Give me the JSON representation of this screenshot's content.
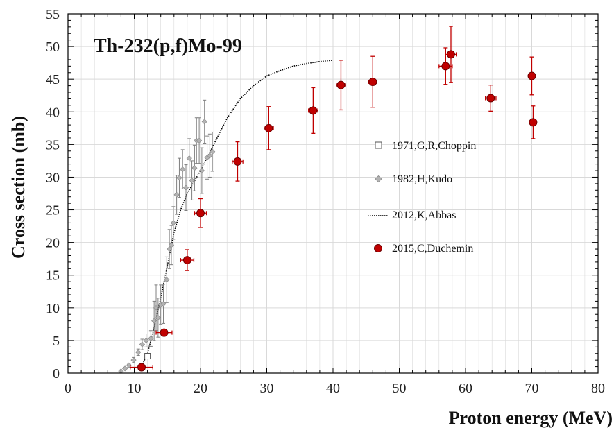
{
  "chart_data": {
    "type": "scatter",
    "title": "Th-232(p,f)Mo-99",
    "xlabel": "Proton energy (MeV)",
    "ylabel": "Cross section (mb)",
    "xlim": [
      0,
      80
    ],
    "ylim": [
      0,
      55
    ],
    "x_ticks": [
      0,
      10,
      20,
      30,
      40,
      50,
      60,
      70,
      80
    ],
    "y_ticks": [
      0,
      5,
      10,
      15,
      20,
      25,
      30,
      35,
      40,
      45,
      50,
      55
    ],
    "grid": true,
    "legend_position": "right",
    "colors": {
      "duchemin": "#c00000",
      "duchemin_edge": "#6b0000",
      "kudo": "#a6a6a6",
      "kudo_err": "#7f7f7f",
      "grid": "#d9d9d9"
    },
    "series": [
      {
        "name": "1971,G,R,Choppin",
        "marker": "open-square",
        "points": [
          {
            "x": 12.0,
            "y": 2.6
          }
        ]
      },
      {
        "name": "1982,H,Kudo",
        "marker": "diamond",
        "points": [
          {
            "x": 8.0,
            "y": 0.3,
            "yerr": 0.1
          },
          {
            "x": 8.6,
            "y": 0.7,
            "yerr": 0.2
          },
          {
            "x": 9.2,
            "y": 1.2,
            "yerr": 0.3
          },
          {
            "x": 9.9,
            "y": 2.0,
            "yerr": 0.4
          },
          {
            "x": 10.6,
            "y": 3.2,
            "yerr": 0.5
          },
          {
            "x": 11.2,
            "y": 4.4,
            "yerr": 0.8
          },
          {
            "x": 11.8,
            "y": 5.0,
            "yerr": 1.0
          },
          {
            "x": 12.5,
            "y": 5.3,
            "yerr": 1.2
          },
          {
            "x": 13.0,
            "y": 8.0,
            "yerr": 3.0
          },
          {
            "x": 13.3,
            "y": 10.0,
            "yerr": 3.5
          },
          {
            "x": 13.6,
            "y": 8.5,
            "yerr": 3.0
          },
          {
            "x": 14.0,
            "y": 10.5,
            "yerr": 3.0
          },
          {
            "x": 14.4,
            "y": 10.6,
            "yerr": 3.0
          },
          {
            "x": 14.9,
            "y": 14.3,
            "yerr": 3.5
          },
          {
            "x": 15.3,
            "y": 19.0,
            "yerr": 3.0
          },
          {
            "x": 15.6,
            "y": 19.6,
            "yerr": 3.0
          },
          {
            "x": 15.9,
            "y": 23.0,
            "yerr": 2.5
          },
          {
            "x": 16.4,
            "y": 27.3,
            "yerr": 3.0
          },
          {
            "x": 16.8,
            "y": 29.9,
            "yerr": 3.0
          },
          {
            "x": 17.3,
            "y": 31.2,
            "yerr": 3.0
          },
          {
            "x": 17.8,
            "y": 28.4,
            "yerr": 3.5
          },
          {
            "x": 18.3,
            "y": 32.9,
            "yerr": 3.0
          },
          {
            "x": 18.7,
            "y": 29.5,
            "yerr": 3.0
          },
          {
            "x": 19.1,
            "y": 31.4,
            "yerr": 3.5
          },
          {
            "x": 19.4,
            "y": 35.6,
            "yerr": 3.5
          },
          {
            "x": 19.8,
            "y": 35.6,
            "yerr": 3.5
          },
          {
            "x": 20.2,
            "y": 31.0,
            "yerr": 3.5
          },
          {
            "x": 20.6,
            "y": 38.5,
            "yerr": 3.3
          },
          {
            "x": 21.0,
            "y": 33.0,
            "yerr": 3.3
          },
          {
            "x": 21.4,
            "y": 33.3,
            "yerr": 3.3
          },
          {
            "x": 21.8,
            "y": 33.9,
            "yerr": 3.0
          }
        ]
      },
      {
        "name": "2012,K,Abbas",
        "marker": "dotted-line",
        "points": [
          {
            "x": 11.0,
            "y": 0.8
          },
          {
            "x": 12.0,
            "y": 3.0
          },
          {
            "x": 13.0,
            "y": 7.0
          },
          {
            "x": 14.0,
            "y": 11.5
          },
          {
            "x": 15.0,
            "y": 16.5
          },
          {
            "x": 16.0,
            "y": 21.5
          },
          {
            "x": 17.0,
            "y": 25.0
          },
          {
            "x": 18.0,
            "y": 27.5
          },
          {
            "x": 20.0,
            "y": 31.0
          },
          {
            "x": 22.0,
            "y": 35.0
          },
          {
            "x": 24.0,
            "y": 39.0
          },
          {
            "x": 26.0,
            "y": 42.0
          },
          {
            "x": 28.0,
            "y": 44.0
          },
          {
            "x": 30.0,
            "y": 45.5
          },
          {
            "x": 32.0,
            "y": 46.3
          },
          {
            "x": 34.0,
            "y": 47.0
          },
          {
            "x": 36.0,
            "y": 47.4
          },
          {
            "x": 38.0,
            "y": 47.7
          },
          {
            "x": 40.0,
            "y": 47.9
          }
        ]
      },
      {
        "name": "2015,C,Duchemin",
        "marker": "filled-circle",
        "points": [
          {
            "x": 11.1,
            "y": 0.9,
            "xerr": 1.7,
            "yerr": 0.2
          },
          {
            "x": 14.5,
            "y": 6.2,
            "xerr": 1.2,
            "yerr": 0.5
          },
          {
            "x": 18.0,
            "y": 17.3,
            "xerr": 1.0,
            "yerr": 1.6
          },
          {
            "x": 20.0,
            "y": 24.5,
            "xerr": 0.9,
            "yerr": 2.2
          },
          {
            "x": 25.6,
            "y": 32.4,
            "xerr": 0.8,
            "yerr": 3.0
          },
          {
            "x": 30.3,
            "y": 37.5,
            "xerr": 0.7,
            "yerr": 3.3
          },
          {
            "x": 37.0,
            "y": 40.2,
            "xerr": 0.7,
            "yerr": 3.5
          },
          {
            "x": 41.2,
            "y": 44.1,
            "xerr": 0.7,
            "yerr": 3.8
          },
          {
            "x": 46.0,
            "y": 44.6,
            "xerr": 0.6,
            "yerr": 3.9
          },
          {
            "x": 57.0,
            "y": 47.0,
            "xerr": 1.0,
            "yerr": 2.8
          },
          {
            "x": 57.8,
            "y": 48.8,
            "xerr": 0.8,
            "yerr": 4.3
          },
          {
            "x": 63.8,
            "y": 42.1,
            "xerr": 0.8,
            "yerr": 2.0
          },
          {
            "x": 70.0,
            "y": 45.5,
            "xerr": 0.5,
            "yerr": 2.9
          },
          {
            "x": 70.2,
            "y": 38.4,
            "xerr": 0.5,
            "yerr": 2.5
          }
        ]
      }
    ]
  }
}
